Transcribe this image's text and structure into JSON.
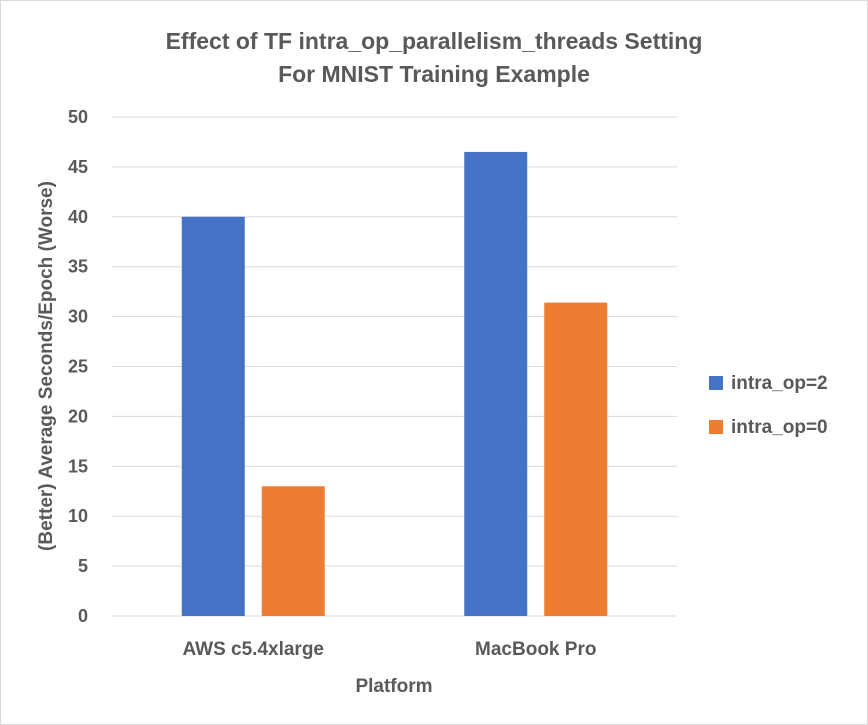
{
  "chart_data": {
    "type": "bar",
    "title_line1": "Effect of TF intra_op_parallelism_threads Setting",
    "title_line2": "For MNIST Training Example",
    "xlabel": "Platform",
    "ylabel": "(Better) Average Seconds/Epoch (Worse)",
    "categories": [
      "AWS c5.4xlarge",
      "MacBook Pro"
    ],
    "series": [
      {
        "name": "intra_op=2",
        "color": "#4472c4",
        "values": [
          40,
          46.5
        ]
      },
      {
        "name": "intra_op=0",
        "color": "#ed7d31",
        "values": [
          13,
          31.4
        ]
      }
    ],
    "ylim": [
      0,
      50
    ],
    "yticks": [
      0,
      5,
      10,
      15,
      20,
      25,
      30,
      35,
      40,
      45,
      50
    ],
    "grid": true,
    "legend_position": "right"
  }
}
